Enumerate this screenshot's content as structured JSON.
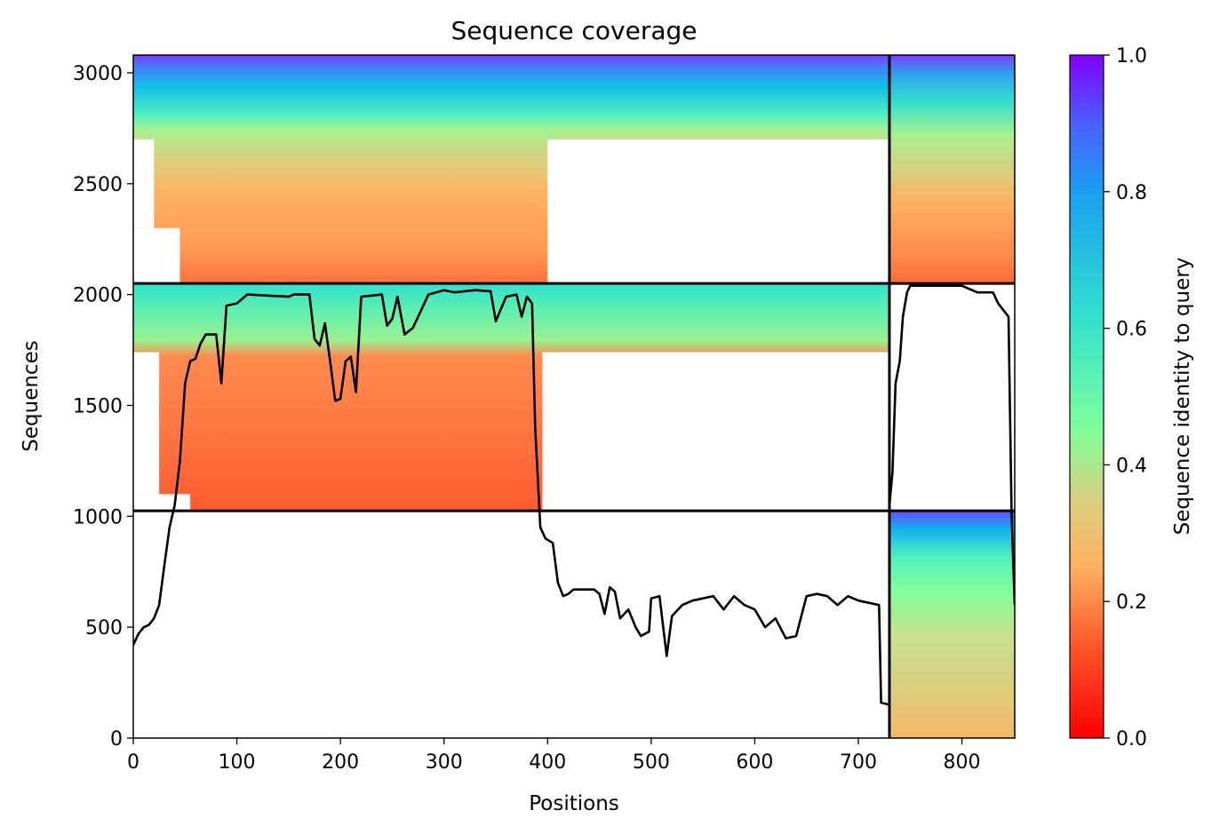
{
  "chart_data": {
    "type": "heatmap",
    "title": "Sequence coverage",
    "xlabel": "Positions",
    "ylabel": "Sequences",
    "xlim": [
      0,
      851
    ],
    "ylim": [
      0,
      3080
    ],
    "x_ticks": [
      0,
      100,
      200,
      300,
      400,
      500,
      600,
      700,
      800
    ],
    "y_ticks": [
      0,
      500,
      1000,
      1500,
      2000,
      2500,
      3000
    ],
    "colorbar": {
      "label": "Sequence identity to query",
      "ticks": [
        "0.0",
        "0.2",
        "0.4",
        "0.6",
        "0.8",
        "1.0"
      ],
      "colormap": "rainbow_r",
      "range": [
        0,
        1
      ]
    },
    "chain_boundary_position": 730,
    "blocks": [
      {
        "name": "pair-top",
        "x": [
          0,
          730
        ],
        "y": [
          2050,
          3080
        ],
        "identity_top": 1.0,
        "identity_bottom": 0.2
      },
      {
        "name": "chainB-top",
        "x": [
          730,
          851
        ],
        "y": [
          2050,
          3080
        ],
        "identity_top": 1.0,
        "identity_bottom": 0.15
      },
      {
        "name": "chainA-middle",
        "x": [
          0,
          730
        ],
        "y": [
          1025,
          2050
        ],
        "identity_top": 0.7,
        "identity_bottom": 0.12
      },
      {
        "name": "chainB-bottom",
        "x": [
          730,
          851
        ],
        "y": [
          0,
          1025
        ],
        "identity_top": 0.95,
        "identity_bottom": 0.25
      }
    ],
    "block_dividers_y": [
      1025,
      2050
    ],
    "coverage_line_chainA": [
      [
        0,
        420
      ],
      [
        5,
        470
      ],
      [
        10,
        500
      ],
      [
        15,
        510
      ],
      [
        20,
        540
      ],
      [
        25,
        600
      ],
      [
        30,
        780
      ],
      [
        35,
        950
      ],
      [
        40,
        1050
      ],
      [
        45,
        1250
      ],
      [
        50,
        1600
      ],
      [
        55,
        1700
      ],
      [
        60,
        1710
      ],
      [
        65,
        1780
      ],
      [
        70,
        1820
      ],
      [
        80,
        1820
      ],
      [
        85,
        1600
      ],
      [
        90,
        1950
      ],
      [
        100,
        1960
      ],
      [
        110,
        2000
      ],
      [
        150,
        1990
      ],
      [
        155,
        2000
      ],
      [
        170,
        2000
      ],
      [
        175,
        1800
      ],
      [
        180,
        1770
      ],
      [
        185,
        1870
      ],
      [
        190,
        1700
      ],
      [
        195,
        1520
      ],
      [
        200,
        1530
      ],
      [
        205,
        1700
      ],
      [
        210,
        1720
      ],
      [
        215,
        1560
      ],
      [
        220,
        1990
      ],
      [
        240,
        2000
      ],
      [
        245,
        1860
      ],
      [
        250,
        1890
      ],
      [
        255,
        1990
      ],
      [
        262,
        1820
      ],
      [
        270,
        1850
      ],
      [
        275,
        1900
      ],
      [
        285,
        2000
      ],
      [
        300,
        2020
      ],
      [
        310,
        2010
      ],
      [
        330,
        2020
      ],
      [
        345,
        2015
      ],
      [
        350,
        1880
      ],
      [
        360,
        1990
      ],
      [
        370,
        2000
      ],
      [
        375,
        1900
      ],
      [
        380,
        1990
      ],
      [
        385,
        1960
      ],
      [
        388,
        1400
      ],
      [
        393,
        950
      ],
      [
        398,
        900
      ],
      [
        405,
        880
      ],
      [
        410,
        700
      ],
      [
        415,
        640
      ],
      [
        420,
        650
      ],
      [
        425,
        670
      ],
      [
        445,
        670
      ],
      [
        450,
        650
      ],
      [
        455,
        560
      ],
      [
        460,
        680
      ],
      [
        465,
        660
      ],
      [
        470,
        540
      ],
      [
        478,
        580
      ],
      [
        485,
        500
      ],
      [
        490,
        460
      ],
      [
        498,
        480
      ],
      [
        500,
        630
      ],
      [
        508,
        640
      ],
      [
        515,
        370
      ],
      [
        520,
        550
      ],
      [
        530,
        600
      ],
      [
        540,
        620
      ],
      [
        550,
        630
      ],
      [
        560,
        640
      ],
      [
        570,
        580
      ],
      [
        580,
        640
      ],
      [
        590,
        600
      ],
      [
        600,
        580
      ],
      [
        610,
        500
      ],
      [
        620,
        540
      ],
      [
        630,
        450
      ],
      [
        640,
        460
      ],
      [
        650,
        640
      ],
      [
        660,
        650
      ],
      [
        670,
        640
      ],
      [
        680,
        600
      ],
      [
        690,
        640
      ],
      [
        700,
        620
      ],
      [
        720,
        600
      ],
      [
        722,
        160
      ],
      [
        730,
        150
      ]
    ],
    "coverage_line_chainB": [
      [
        730,
        1050
      ],
      [
        733,
        1200
      ],
      [
        736,
        1600
      ],
      [
        740,
        1700
      ],
      [
        743,
        1900
      ],
      [
        747,
        2010
      ],
      [
        750,
        2040
      ],
      [
        770,
        2040
      ],
      [
        800,
        2040
      ],
      [
        815,
        2010
      ],
      [
        830,
        2010
      ],
      [
        835,
        1960
      ],
      [
        845,
        1900
      ],
      [
        848,
        1000
      ],
      [
        851,
        600
      ]
    ]
  }
}
